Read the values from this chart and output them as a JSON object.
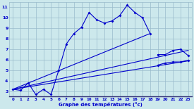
{
  "xlabel": "Graphe des températures (°c)",
  "xlim": [
    -0.5,
    23.5
  ],
  "ylim": [
    2.5,
    11.5
  ],
  "xticks": [
    0,
    1,
    2,
    3,
    4,
    5,
    6,
    7,
    8,
    9,
    10,
    11,
    12,
    13,
    14,
    15,
    16,
    17,
    18,
    19,
    20,
    21,
    22,
    23
  ],
  "yticks": [
    3,
    4,
    5,
    6,
    7,
    8,
    9,
    10,
    11
  ],
  "bg_color": "#cce8ec",
  "line_color": "#0000cc",
  "grid_color": "#99bbcc",
  "main_x": [
    0,
    1,
    2,
    3,
    4,
    5,
    6,
    7,
    8,
    9,
    10,
    11,
    12,
    13,
    14,
    15,
    16,
    17,
    18
  ],
  "main_y": [
    3.2,
    3.1,
    3.8,
    2.7,
    3.2,
    2.7,
    5.0,
    7.5,
    8.5,
    9.1,
    10.5,
    9.8,
    9.5,
    9.7,
    10.2,
    11.2,
    10.5,
    10.0,
    8.5
  ],
  "line1_x": [
    0,
    18
  ],
  "line1_y": [
    3.2,
    8.5
  ],
  "line2_x": [
    0,
    23
  ],
  "line2_y": [
    3.2,
    6.9
  ],
  "line3_x": [
    0,
    23
  ],
  "line3_y": [
    3.2,
    5.9
  ],
  "end_x": [
    19,
    20,
    21,
    22,
    23
  ],
  "end_y": [
    6.5,
    6.5,
    6.9,
    7.0,
    6.4
  ],
  "lower_end_x": [
    19,
    20,
    21,
    22,
    23
  ],
  "lower_end_y": [
    5.5,
    5.7,
    5.8,
    5.8,
    5.95
  ]
}
